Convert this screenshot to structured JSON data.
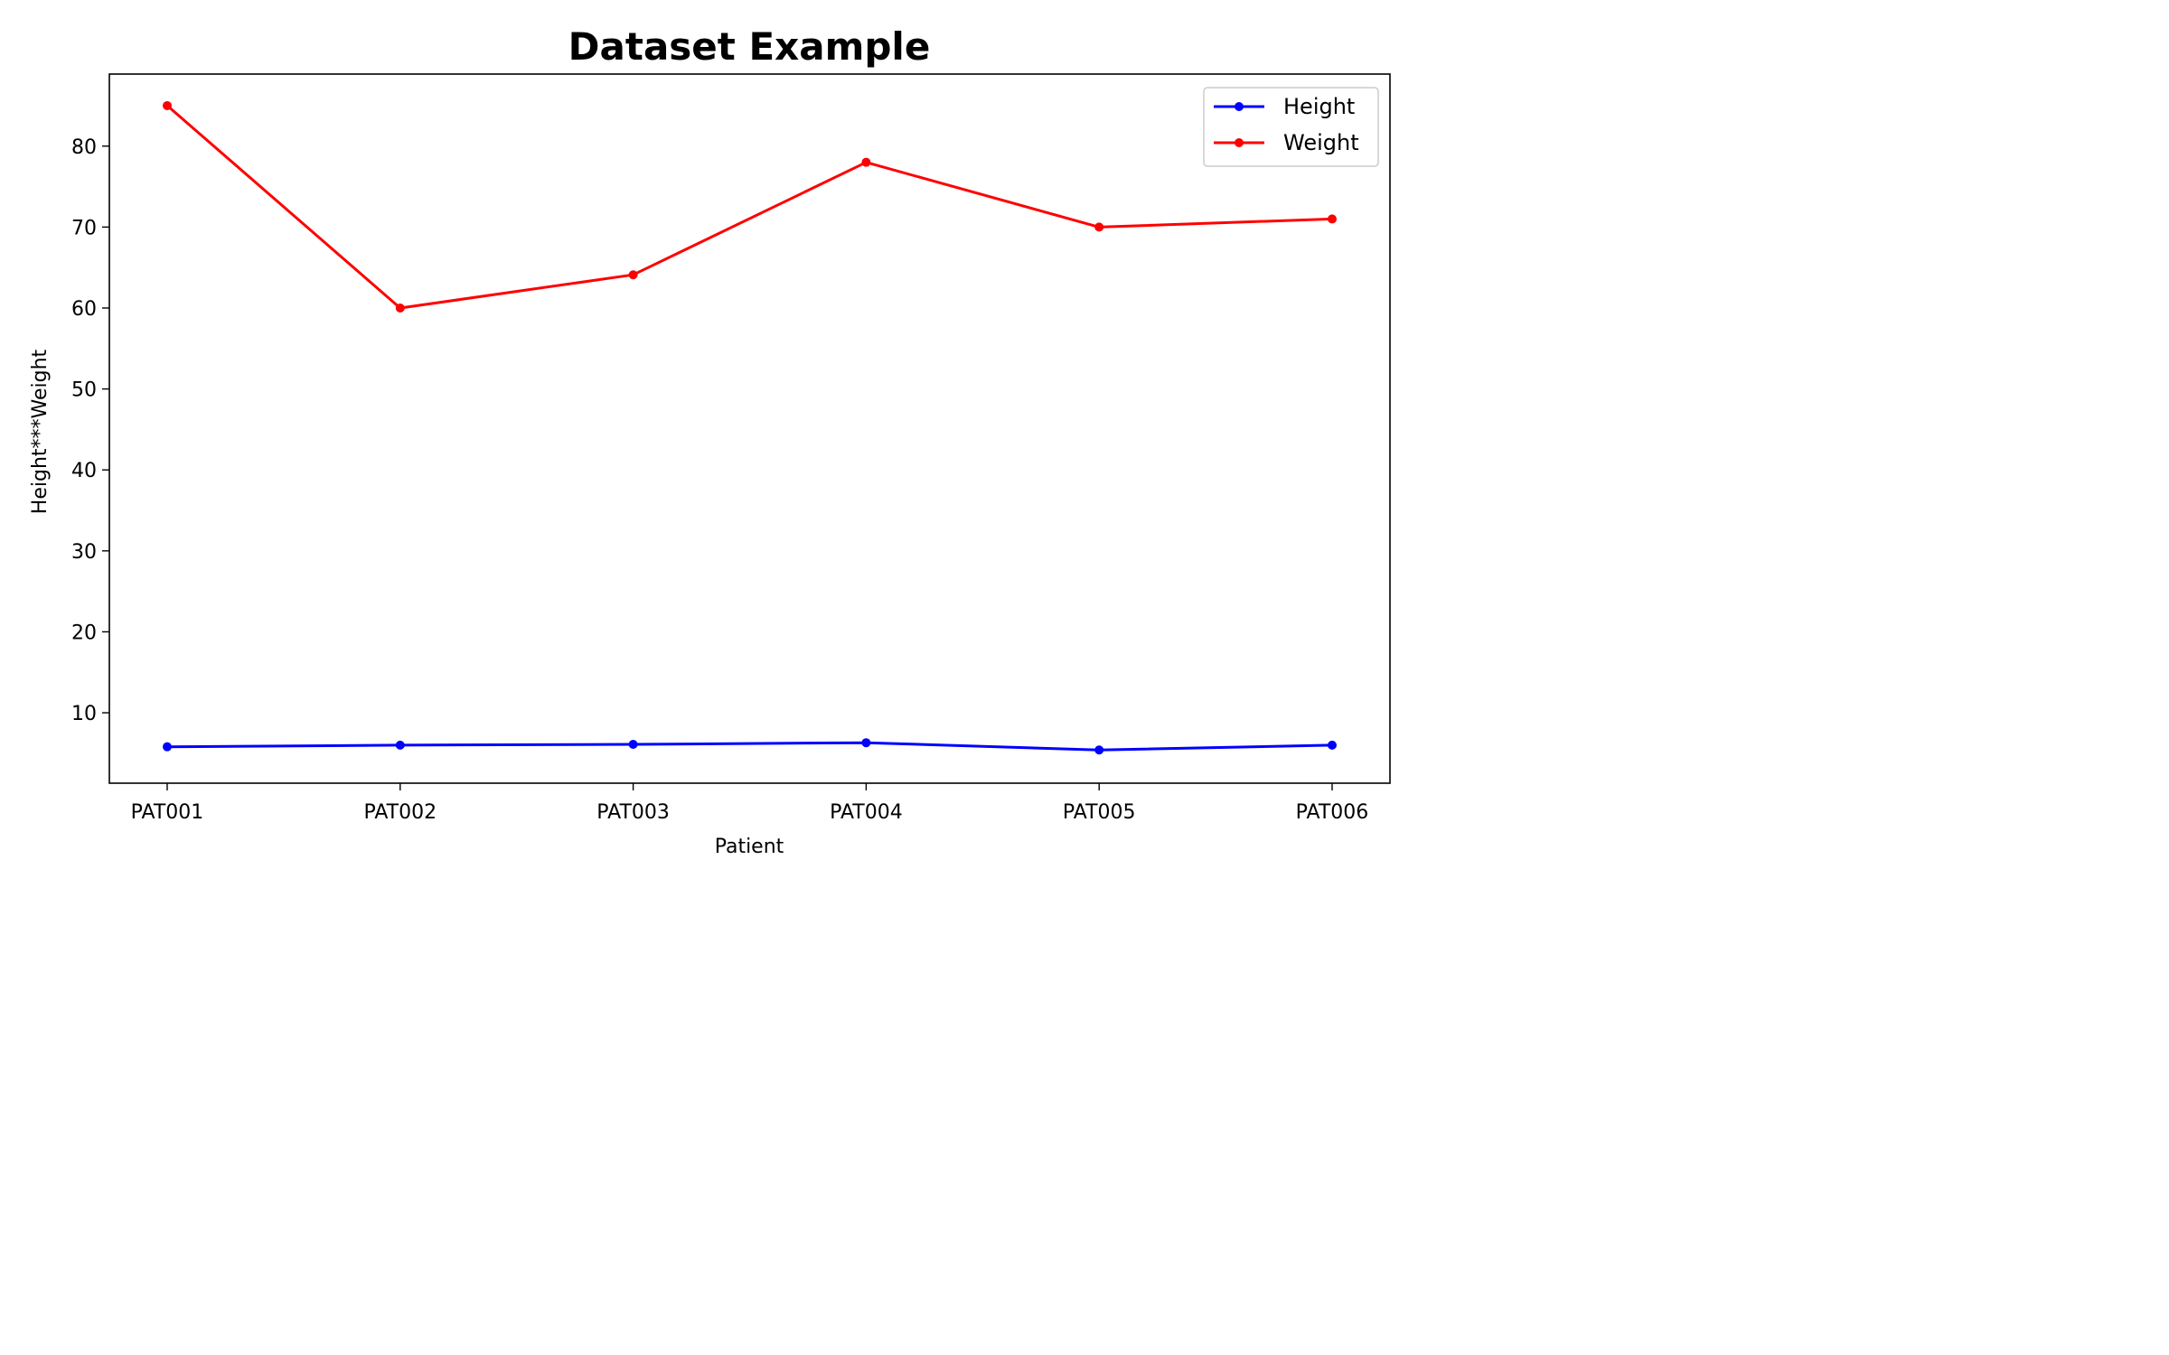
{
  "chart_data": {
    "type": "line",
    "title": "Dataset Example",
    "xlabel": "Patient",
    "ylabel": "Height***Weight",
    "categories": [
      "PAT001",
      "PAT002",
      "PAT003",
      "PAT004",
      "PAT005",
      "PAT006"
    ],
    "ylim": [
      1.3,
      88.9
    ],
    "yticks": [
      10,
      20,
      30,
      40,
      50,
      60,
      70,
      80
    ],
    "grid": false,
    "legend_position": "top-right",
    "series": [
      {
        "name": "Height",
        "color": "#0000ff",
        "marker": "circle",
        "values": [
          5.8,
          6.0,
          6.1,
          6.3,
          5.4,
          6.0
        ]
      },
      {
        "name": "Weight",
        "color": "#ff0000",
        "marker": "circle",
        "values": [
          85,
          60,
          64.1,
          78,
          70,
          71
        ]
      }
    ]
  }
}
